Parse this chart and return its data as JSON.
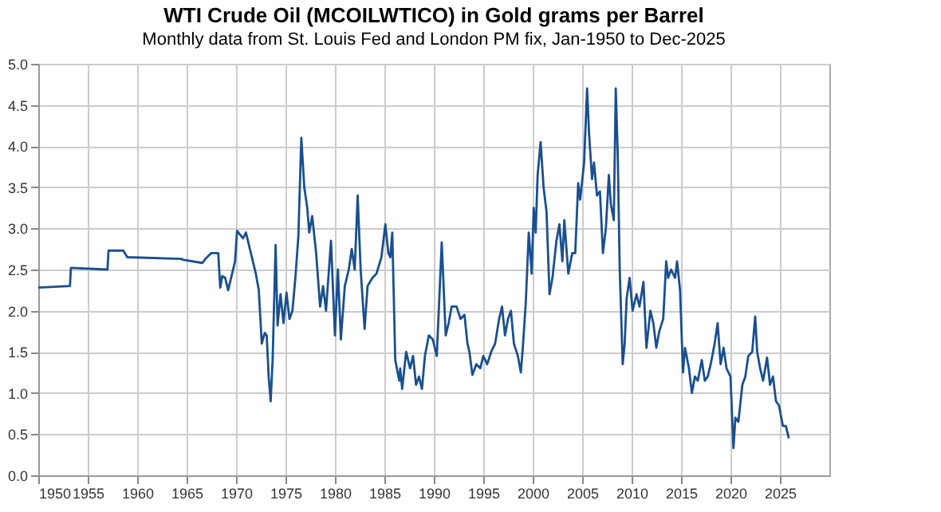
{
  "chart_data": {
    "type": "line",
    "title": "WTI Crude Oil (MCOILWTICO) in Gold grams per Barrel",
    "subtitle": "Monthly data from St. Louis Fed and London PM fix, Jan-1950 to Dec-2025",
    "x": [
      1950,
      1953.2,
      1953.3,
      1957.0,
      1957.1,
      1958.6,
      1959.0,
      1964.5,
      1964.6,
      1966.6,
      1966.9,
      1967.5,
      1968.2,
      1968.4,
      1968.6,
      1968.9,
      1969.2,
      1969.5,
      1969.9,
      1970.1,
      1970.7,
      1971.0,
      1971.5,
      1972.0,
      1972.3,
      1972.6,
      1972.9,
      1973.1,
      1973.3,
      1973.5,
      1973.7,
      1974.0,
      1974.2,
      1974.5,
      1974.8,
      1975.1,
      1975.4,
      1975.7,
      1976.0,
      1976.3,
      1976.6,
      1976.9,
      1977.2,
      1977.4,
      1977.7,
      1978.1,
      1978.5,
      1978.8,
      1979.1,
      1979.6,
      1980.0,
      1980.3,
      1980.6,
      1981.0,
      1981.4,
      1981.7,
      1982.0,
      1982.3,
      1982.6,
      1983.0,
      1983.3,
      1983.8,
      1984.2,
      1984.7,
      1985.1,
      1985.4,
      1985.6,
      1985.8,
      1986.1,
      1986.5,
      1986.6,
      1986.8,
      1987.2,
      1987.6,
      1987.9,
      1988.2,
      1988.5,
      1988.8,
      1989.1,
      1989.5,
      1989.9,
      1990.3,
      1990.8,
      1991.2,
      1991.5,
      1991.8,
      1992.3,
      1992.7,
      1993.1,
      1993.4,
      1993.6,
      1993.9,
      1994.3,
      1994.7,
      1995.0,
      1995.4,
      1995.8,
      1996.2,
      1996.6,
      1996.9,
      1997.2,
      1997.5,
      1997.8,
      1998.1,
      1998.5,
      1998.8,
      1999.0,
      1999.3,
      1999.6,
      1999.9,
      2000.1,
      2000.3,
      2000.5,
      2000.8,
      2001.1,
      2001.4,
      2001.7,
      2002.0,
      2002.4,
      2002.7,
      2003.0,
      2003.2,
      2003.6,
      2004.0,
      2004.3,
      2004.6,
      2004.8,
      2005.2,
      2005.5,
      2005.7,
      2006.0,
      2006.2,
      2006.5,
      2006.8,
      2007.1,
      2007.4,
      2007.7,
      2007.9,
      2008.2,
      2008.4,
      2008.6,
      2008.8,
      2009.1,
      2009.3,
      2009.5,
      2009.8,
      2010.1,
      2010.5,
      2010.8,
      2011.2,
      2011.5,
      2011.9,
      2012.2,
      2012.5,
      2012.8,
      2013.2,
      2013.5,
      2013.7,
      2014.0,
      2014.4,
      2014.6,
      2014.9,
      2015.2,
      2015.4,
      2015.8,
      2016.1,
      2016.4,
      2016.7,
      2017.1,
      2017.4,
      2017.7,
      2018.0,
      2018.4,
      2018.7,
      2019.0,
      2019.3,
      2019.6,
      2020.0,
      2020.3,
      2020.5,
      2020.8,
      2021.2,
      2021.5,
      2021.8,
      2022.2,
      2022.5,
      2022.7,
      2023.0,
      2023.3,
      2023.7,
      2024.0,
      2024.3,
      2024.6,
      2024.9,
      2025.3,
      2025.6,
      2025.9
    ],
    "series": [
      {
        "color": "#1a4f8f",
        "values": [
          2.28,
          2.3,
          2.52,
          2.5,
          2.73,
          2.73,
          2.65,
          2.63,
          2.62,
          2.58,
          2.63,
          2.7,
          2.7,
          2.28,
          2.42,
          2.4,
          2.25,
          2.4,
          2.6,
          2.97,
          2.88,
          2.95,
          2.7,
          2.45,
          2.25,
          1.6,
          1.73,
          1.7,
          1.2,
          0.9,
          1.4,
          2.8,
          1.82,
          2.2,
          1.85,
          2.22,
          1.9,
          2.0,
          2.4,
          2.9,
          4.1,
          3.5,
          3.25,
          2.95,
          3.15,
          2.7,
          2.05,
          2.3,
          2.0,
          2.85,
          1.7,
          2.5,
          1.65,
          2.3,
          2.5,
          2.75,
          2.5,
          3.4,
          2.5,
          1.78,
          2.3,
          2.4,
          2.45,
          2.65,
          3.05,
          2.7,
          2.65,
          2.95,
          1.4,
          1.15,
          1.3,
          1.05,
          1.5,
          1.3,
          1.45,
          1.1,
          1.2,
          1.05,
          1.45,
          1.7,
          1.65,
          1.45,
          2.83,
          1.7,
          1.85,
          2.05,
          2.05,
          1.9,
          1.95,
          1.6,
          1.5,
          1.22,
          1.35,
          1.3,
          1.45,
          1.35,
          1.5,
          1.6,
          1.9,
          2.05,
          1.7,
          1.9,
          2.0,
          1.6,
          1.45,
          1.25,
          1.55,
          2.1,
          2.95,
          2.45,
          3.25,
          2.95,
          3.65,
          4.05,
          3.5,
          3.2,
          2.2,
          2.4,
          2.85,
          3.05,
          2.6,
          3.1,
          2.45,
          2.7,
          2.7,
          3.55,
          3.35,
          3.8,
          4.7,
          4.15,
          3.6,
          3.8,
          3.4,
          3.45,
          2.7,
          3.0,
          3.65,
          3.3,
          3.1,
          4.7,
          3.9,
          2.5,
          1.35,
          1.6,
          2.15,
          2.4,
          2.0,
          2.2,
          2.05,
          2.35,
          1.55,
          2.0,
          1.85,
          1.55,
          1.75,
          1.9,
          2.6,
          2.4,
          2.5,
          2.4,
          2.6,
          2.25,
          1.25,
          1.55,
          1.3,
          1.0,
          1.2,
          1.15,
          1.4,
          1.15,
          1.2,
          1.35,
          1.6,
          1.85,
          1.35,
          1.55,
          1.3,
          1.2,
          0.33,
          0.7,
          0.65,
          1.1,
          1.2,
          1.45,
          1.5,
          1.93,
          1.5,
          1.3,
          1.15,
          1.43,
          1.1,
          1.2,
          0.9,
          0.85,
          0.6,
          0.6,
          0.45
        ]
      }
    ],
    "xlim": [
      1950,
      2030
    ],
    "xticks": [
      1950,
      1955,
      1960,
      1965,
      1970,
      1975,
      1980,
      1985,
      1990,
      1995,
      2000,
      2005,
      2010,
      2015,
      2020,
      2025
    ],
    "ylim": [
      0,
      5
    ],
    "yticks": [
      {
        "value": 0,
        "label": "0.0"
      },
      0.5,
      {
        "value": 1,
        "label": "1.0"
      },
      1.5,
      {
        "value": 2,
        "label": "2.0"
      },
      2.5,
      {
        "value": 3,
        "label": "3.0"
      },
      3.5,
      {
        "value": 4,
        "label": "4.0"
      },
      4.5,
      {
        "value": 5,
        "label": "5.0"
      }
    ],
    "grid": true
  }
}
